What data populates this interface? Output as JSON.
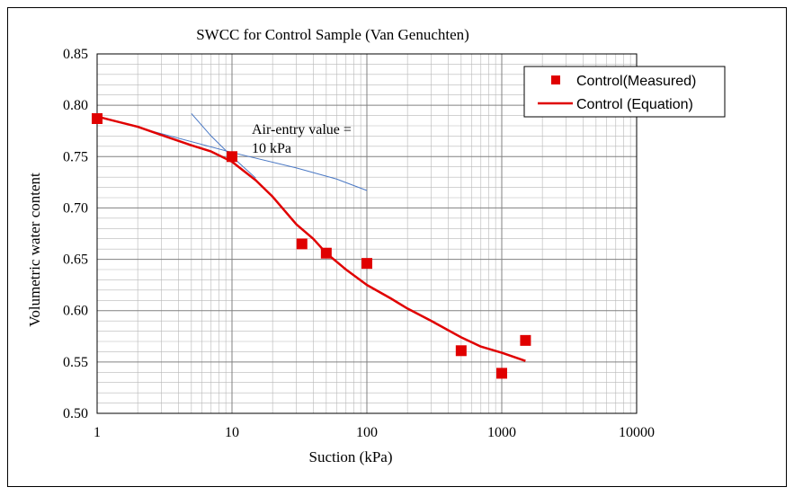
{
  "chart_data": {
    "type": "scatter",
    "title": "SWCC for Control Sample (Van Genuchten)",
    "xlabel": "Suction (kPa)",
    "ylabel": "Volumetric water content",
    "xscale": "log",
    "xlim": [
      1,
      10000
    ],
    "ylim": [
      0.5,
      0.85
    ],
    "x_ticks": [
      {
        "value": 1,
        "label": "1"
      },
      {
        "value": 10,
        "label": "10"
      },
      {
        "value": 100,
        "label": "100"
      },
      {
        "value": 1000,
        "label": "1000"
      },
      {
        "value": 10000,
        "label": "10000"
      }
    ],
    "y_ticks": [
      {
        "value": 0.5,
        "label": "0.50"
      },
      {
        "value": 0.55,
        "label": "0.55"
      },
      {
        "value": 0.6,
        "label": "0.60"
      },
      {
        "value": 0.65,
        "label": "0.65"
      },
      {
        "value": 0.7,
        "label": "0.70"
      },
      {
        "value": 0.75,
        "label": "0.75"
      },
      {
        "value": 0.8,
        "label": "0.80"
      },
      {
        "value": 0.85,
        "label": "0.85"
      }
    ],
    "grid": true,
    "legend_position": "top-right",
    "colors": {
      "series": "#e00000",
      "tangent": "#4a78c4",
      "grid": "#b8b8b8"
    },
    "series": [
      {
        "name": "Control(Measured)",
        "kind": "markers",
        "marker": "square",
        "x": [
          1,
          10,
          33,
          50,
          100,
          500,
          1000,
          1500
        ],
        "y": [
          0.787,
          0.75,
          0.665,
          0.656,
          0.646,
          0.561,
          0.539,
          0.571
        ]
      },
      {
        "name": "Control (Equation)",
        "kind": "line",
        "x": [
          1,
          2,
          3,
          5,
          7,
          10,
          15,
          20,
          30,
          40,
          50,
          70,
          100,
          150,
          200,
          300,
          500,
          700,
          1000,
          1500
        ],
        "y": [
          0.789,
          0.779,
          0.771,
          0.761,
          0.755,
          0.745,
          0.727,
          0.711,
          0.684,
          0.67,
          0.656,
          0.64,
          0.625,
          0.612,
          0.602,
          0.59,
          0.574,
          0.565,
          0.559,
          0.551
        ]
      }
    ],
    "tangent_lines": [
      {
        "x": [
          1,
          10,
          30,
          60,
          100
        ],
        "y": [
          0.789,
          0.754,
          0.739,
          0.728,
          0.717
        ]
      },
      {
        "x": [
          5,
          7,
          10,
          15
        ],
        "y": [
          0.792,
          0.77,
          0.75,
          0.729
        ]
      }
    ],
    "annotation": {
      "lines": [
        "Air-entry value =",
        "10 kPa"
      ]
    }
  }
}
